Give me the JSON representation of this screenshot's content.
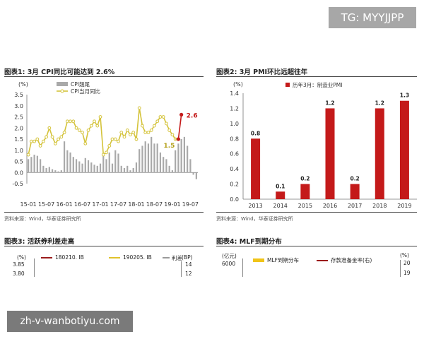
{
  "watermark_top": "TG: MYYJJPP",
  "watermark_bottom": "zh-v-wanbotiyu.com",
  "fig1": {
    "title": "图表1:  3月 CPI同比可能达到 2.6%",
    "source": "资料来源：Wind，华泰证券研究所"
  },
  "fig2": {
    "title": "图表2:  3月 PMI环比远超往年",
    "source": "资料来源：Wind，华泰证券研究所"
  },
  "fig3": {
    "title": "图表3:  活跃券利差走高",
    "y_unit": "(%)",
    "tick_top": "3.85",
    "tick_next": "3.80",
    "legend": [
      "180210. IB",
      "190205. IB",
      "利差"
    ],
    "right_unit": "(BP)",
    "right_tick_top": "14",
    "right_tick_next": "12"
  },
  "fig4": {
    "title": "图表4:  MLF到期分布",
    "y_unit": "(亿元)",
    "tick_top": "6000",
    "legend": [
      "MLF到期分布",
      "存款准备金率(右)"
    ],
    "right_unit": "(%)",
    "right_tick_top": "20",
    "right_tick_next": "19"
  },
  "colors": {
    "grey_bar": "#a9a9a9",
    "yellow_line": "#d4c33a",
    "red": "#c41a1a",
    "dark_red": "#9b1b1b"
  },
  "chart_data": [
    {
      "type": "line",
      "title": "图表1:  3月 CPI同比可能达到 2.6%",
      "ylabel": "(%)",
      "ylim": [
        -0.5,
        3.5
      ],
      "yticks": [
        "-0.5",
        "0.0",
        "0.5",
        "1.0",
        "1.5",
        "2.0",
        "2.5",
        "3.0",
        "3.5"
      ],
      "xticks": [
        "15-01",
        "15-07",
        "16-01",
        "16-07",
        "17-01",
        "17-07",
        "18-01",
        "18-07",
        "19-01",
        "19-07"
      ],
      "series": [
        {
          "name": "CPI翘尾",
          "type": "bar",
          "values": [
            0.6,
            0.7,
            0.8,
            0.75,
            0.6,
            0.3,
            0.2,
            0.25,
            0.15,
            0.1,
            0.05,
            0.1,
            1.4,
            1.0,
            0.9,
            0.7,
            0.6,
            0.5,
            0.4,
            0.65,
            0.55,
            0.45,
            0.35,
            0.3,
            0.4,
            0.8,
            0.6,
            0.9,
            0.4,
            1.0,
            0.85,
            0.3,
            0.2,
            0.3,
            0.1,
            0.2,
            0.45,
            1.05,
            1.2,
            1.4,
            1.3,
            1.6,
            1.3,
            1.3,
            0.9,
            0.7,
            0.6,
            0.3,
            0.1,
            1.0,
            1.3,
            1.5,
            1.6,
            1.2,
            0.6,
            -0.1,
            -0.3
          ]
        },
        {
          "name": "CPI当月同比",
          "type": "line",
          "values": [
            0.8,
            1.4,
            1.4,
            1.5,
            1.2,
            1.4,
            1.6,
            2.0,
            1.6,
            1.3,
            1.5,
            1.6,
            1.8,
            2.3,
            2.3,
            2.3,
            2.0,
            1.9,
            1.8,
            1.3,
            1.9,
            2.1,
            2.3,
            2.1,
            2.5,
            0.8,
            0.9,
            1.2,
            1.5,
            1.5,
            1.4,
            1.8,
            1.6,
            1.9,
            1.7,
            1.8,
            1.5,
            2.9,
            2.1,
            1.8,
            1.8,
            1.9,
            2.1,
            2.3,
            2.5,
            2.5,
            2.2,
            1.9,
            1.7,
            1.5
          ]
        },
        {
          "name": "",
          "type": "line",
          "x_range": [
            "19-02",
            "19-03"
          ],
          "values": [
            1.5,
            2.6
          ]
        }
      ],
      "annotations": [
        "1.5",
        "2.6"
      ]
    },
    {
      "type": "bar",
      "title": "图表2:  3月 PMI环比远超往年",
      "legend": "历年3月：制造业PMI",
      "categories": [
        "2013",
        "2014",
        "2015",
        "2016",
        "2017",
        "2018",
        "2019"
      ],
      "values": [
        0.8,
        0.1,
        0.2,
        1.2,
        0.2,
        1.2,
        1.3
      ],
      "data_labels": [
        "0.8",
        "0.1",
        "0.2",
        "1.2",
        "0.2",
        "1.2",
        "1.3"
      ],
      "ylabel": "(%)",
      "ylim": [
        0,
        1.4
      ],
      "yticks": [
        "0.0",
        "0.2",
        "0.4",
        "0.6",
        "0.8",
        "1.0",
        "1.2",
        "1.4"
      ]
    }
  ]
}
